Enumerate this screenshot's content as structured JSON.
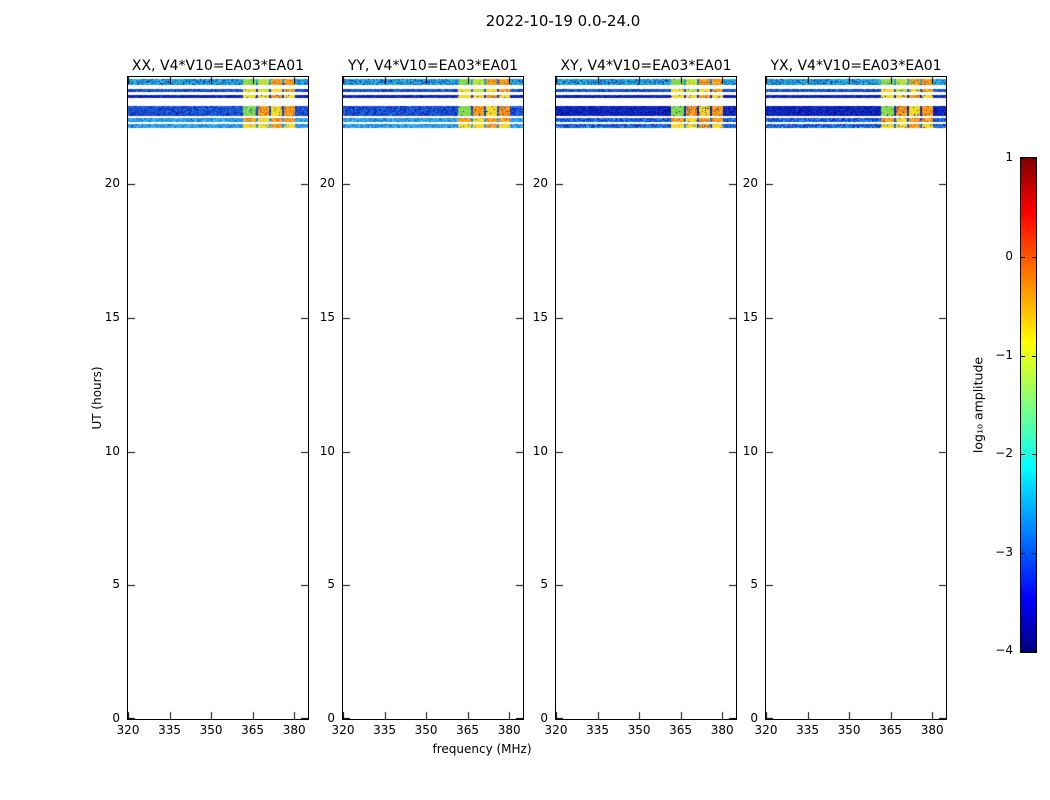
{
  "figure": {
    "background": "#ffffff"
  },
  "chart_data": {
    "type": "heatmap",
    "title": "2022-10-19 0.0-24.0",
    "xlabel": "frequency (MHz)",
    "ylabel": "UT (hours)",
    "panels": [
      {
        "label": "XX, V4*V10=EA03*EA01",
        "pol": "XX",
        "pol_type": "parallel"
      },
      {
        "label": "YY, V4*V10=EA03*EA01",
        "pol": "YY",
        "pol_type": "parallel"
      },
      {
        "label": "XY, V4*V10=EA03*EA01",
        "pol": "XY",
        "pol_type": "cross"
      },
      {
        "label": "YX, V4*V10=EA03*EA01",
        "pol": "YX",
        "pol_type": "cross"
      }
    ],
    "xlim": [
      320,
      385
    ],
    "ylim": [
      0,
      24
    ],
    "xtick_labels": [
      "320",
      "335",
      "350",
      "365",
      "380"
    ],
    "xtick_values": [
      320,
      335,
      350,
      365,
      380
    ],
    "ytick_labels": [
      "0",
      "5",
      "10",
      "15",
      "20"
    ],
    "ytick_values": [
      0,
      5,
      10,
      15,
      20
    ],
    "grid": false,
    "colorbar": {
      "label": "log₁₀ amplitude",
      "tick_labels": [
        "1",
        "0",
        "−1",
        "−2",
        "−3",
        "−4"
      ],
      "tick_values": [
        1,
        0,
        -1,
        -2,
        -3,
        -4
      ],
      "range": [
        -4,
        1
      ],
      "colormap": "jet",
      "gradient_stops": [
        {
          "value": -4.0,
          "color": "#00007f"
        },
        {
          "value": -3.45,
          "color": "#0000ff"
        },
        {
          "value": -2.125,
          "color": "#00ffff"
        },
        {
          "value": -0.875,
          "color": "#ffff00"
        },
        {
          "value": 0.45,
          "color": "#ff0000"
        },
        {
          "value": 1.0,
          "color": "#7f0000"
        }
      ]
    },
    "observation_bands": [
      {
        "ut_range": [
          23.7,
          23.91
        ],
        "base": {
          "parallel": "cyan_mix",
          "cross": "cyan_mix"
        },
        "segments": [
          "green",
          "yellowgreen",
          "orange",
          "orange"
        ]
      },
      {
        "ut_range": [
          23.45,
          23.55
        ],
        "base": {
          "parallel": "blue_mid",
          "cross": "blue_mid"
        },
        "segments": [
          "yellow",
          "yellowgreen",
          "yellow",
          "orange"
        ]
      },
      {
        "ut_range": [
          23.21,
          23.33
        ],
        "base": {
          "parallel": "navy",
          "cross": "navy"
        },
        "segments": [
          "yellow",
          "yellow",
          "orange",
          "yellow"
        ]
      },
      {
        "ut_range": [
          22.56,
          22.9
        ],
        "base": {
          "parallel": "blue_mid",
          "cross": "navy"
        },
        "segments": [
          "green",
          "orange",
          "yellow",
          "orange"
        ]
      },
      {
        "ut_range": [
          22.32,
          22.46
        ],
        "base": {
          "parallel": "cyan_bright",
          "cross": "blue_cyan"
        },
        "segments": [
          "orange",
          "yellow",
          "orange",
          "orange"
        ]
      },
      {
        "ut_range": [
          22.11,
          22.23
        ],
        "base": {
          "parallel": "cyan_bright",
          "cross": "blue_cyan"
        },
        "segments": [
          "yellow",
          "yellow",
          "orange",
          "yellow"
        ]
      }
    ],
    "rfi_segments_mhz": [
      [
        361.5,
        366.2
      ],
      [
        366.9,
        371.0
      ],
      [
        371.6,
        375.6
      ],
      [
        376.2,
        380.2
      ]
    ],
    "palettes": {
      "cyan_mix": [
        "#18a6e2",
        "#27c2da",
        "#1480d8",
        "#33bce9",
        "#0f55c8",
        "#3fcac0",
        "#0a2fb4",
        "#19b0d8",
        "#2f9ce6",
        "#0d70d0"
      ],
      "blue_mid": [
        "#1b4ad8",
        "#0d2db9",
        "#2a63e0",
        "#0a1fa8",
        "#2056dd",
        "#1a8ade",
        "#0f3cc8"
      ],
      "navy": [
        "#0a16a6",
        "#0c20c2",
        "#071090",
        "#102fc6",
        "#0d1bb0",
        "#1c45d8"
      ],
      "cyan_bright": [
        "#2f9ce9",
        "#1e7ce0",
        "#3ab6ec",
        "#1562d2",
        "#49c6e9",
        "#27a8e6"
      ],
      "blue_cyan": [
        "#1546d0",
        "#0d2cb8",
        "#2292e2",
        "#1a5edc",
        "#32abe8",
        "#0f3cc4"
      ],
      "green": [
        "#7ad84a",
        "#97e23c",
        "#60d06a",
        "#b4e634",
        "#86dc50",
        "#6fd85a"
      ],
      "yellowgreen": [
        "#c6e832",
        "#a8e23c",
        "#e0e428",
        "#92dc46",
        "#d2ec2e"
      ],
      "yellow": [
        "#f2dc1e",
        "#fed81e",
        "#e6e426",
        "#f6c81c",
        "#ffe22a"
      ],
      "orange": [
        "#fb9b12",
        "#f4830c",
        "#ffb01e",
        "#ea6d08",
        "#fdc01a",
        "#ff9c14"
      ]
    }
  }
}
